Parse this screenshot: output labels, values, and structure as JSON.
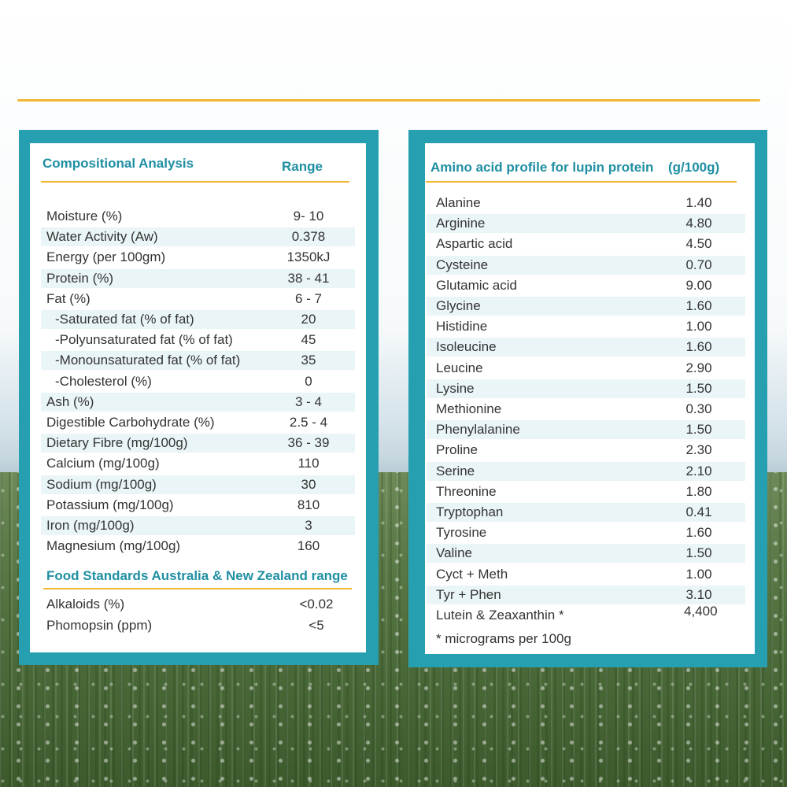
{
  "compositional": {
    "heading": "Compositional Analysis",
    "range_heading": "Range",
    "rows": [
      {
        "label": "Moisture (%)",
        "value": "9- 10"
      },
      {
        "label": "Water Activity (Aw)",
        "value": "0.378"
      },
      {
        "label": "Energy (per 100gm)",
        "value": "1350kJ"
      },
      {
        "label": "Protein (%)",
        "value": "38 - 41"
      },
      {
        "label": "Fat (%)",
        "value": "6 - 7"
      },
      {
        "label": "-Saturated fat (% of fat)",
        "value": "20",
        "indent": true
      },
      {
        "label": "-Polyunsaturated fat (% of fat)",
        "value": "45",
        "indent": true
      },
      {
        "label": "-Monounsaturated fat (% of fat)",
        "value": "35",
        "indent": true
      },
      {
        "label": "-Cholesterol (%)",
        "value": "0",
        "indent": true
      },
      {
        "label": "Ash (%)",
        "value": "3 - 4"
      },
      {
        "label": "Digestible Carbohydrate (%)",
        "value": "2.5 - 4"
      },
      {
        "label": "Dietary Fibre (mg/100g)",
        "value": "36 - 39"
      },
      {
        "label": "Calcium (mg/100g)",
        "value": "110"
      },
      {
        "label": "Sodium (mg/100g)",
        "value": "30"
      },
      {
        "label": "Potassium (mg/100g)",
        "value": "810"
      },
      {
        "label": "Iron (mg/100g)",
        "value": "3"
      },
      {
        "label": "Magnesium (mg/100g)",
        "value": "160"
      }
    ]
  },
  "fsanz": {
    "heading": "Food Standards Australia & New Zealand range",
    "rows": [
      {
        "label": "Alkaloids (%)",
        "value": "<0.02"
      },
      {
        "label": "Phomopsin (ppm)",
        "value": "<5"
      }
    ]
  },
  "amino": {
    "heading": "Amino acid profile for lupin protein",
    "unit_heading": "(g/100g)",
    "rows": [
      {
        "label": "Alanine",
        "value": "1.40"
      },
      {
        "label": "Arginine",
        "value": "4.80"
      },
      {
        "label": "Aspartic acid",
        "value": "4.50"
      },
      {
        "label": "Cysteine",
        "value": "0.70"
      },
      {
        "label": "Glutamic acid",
        "value": "9.00"
      },
      {
        "label": "Glycine",
        "value": "1.60"
      },
      {
        "label": "Histidine",
        "value": "1.00"
      },
      {
        "label": "Isoleucine",
        "value": "1.60"
      },
      {
        "label": "Leucine",
        "value": "2.90"
      },
      {
        "label": "Lysine",
        "value": "1.50"
      },
      {
        "label": "Methionine",
        "value": "0.30"
      },
      {
        "label": "Phenylalanine",
        "value": "1.50"
      },
      {
        "label": "Proline",
        "value": "2.30"
      },
      {
        "label": "Serine",
        "value": "2.10"
      },
      {
        "label": "Threonine",
        "value": "1.80"
      },
      {
        "label": "Tryptophan",
        "value": "0.41"
      },
      {
        "label": "Tyrosine",
        "value": "1.60"
      },
      {
        "label": "Valine",
        "value": "1.50"
      },
      {
        "label": "Cyct + Meth",
        "value": "1.00"
      },
      {
        "label": "Tyr + Phen",
        "value": "3.10"
      }
    ],
    "lutein_label": "Lutein & Zeaxanthin *",
    "lutein_value": "4,400",
    "footnote": "* micrograms per 100g"
  },
  "colors": {
    "teal": "#26a0b0",
    "heading_teal": "#1f8fa2",
    "gold": "#f2b634",
    "row_alt": "#eaf5f8"
  }
}
